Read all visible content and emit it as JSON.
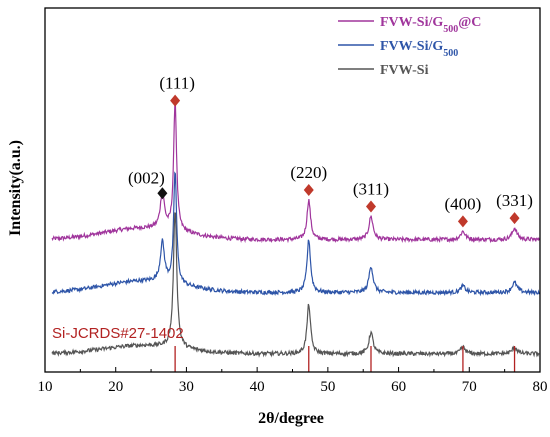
{
  "chart_data": {
    "type": "line",
    "xlabel": "2θ/degree",
    "ylabel": "Intensity(a.u.)",
    "xlim": [
      10,
      80
    ],
    "x_ticks": [
      10,
      20,
      30,
      40,
      50,
      60,
      70,
      80
    ],
    "y_ticks_shown": false,
    "legend_position": "top-right",
    "series": [
      {
        "name": "FVW-Si/G500@C",
        "color": "#a0359c",
        "baseline": 4.0,
        "peaks": [
          [
            26.6,
            1.1,
            0.35
          ],
          [
            28.4,
            3.9,
            0.25
          ],
          [
            47.3,
            1.2,
            0.3
          ],
          [
            56.1,
            0.7,
            0.35
          ],
          [
            69.1,
            0.25,
            0.4
          ],
          [
            76.4,
            0.35,
            0.4
          ]
        ]
      },
      {
        "name": "FVW-Si/G500",
        "color": "#2e55a8",
        "baseline": 2.4,
        "peaks": [
          [
            26.6,
            1.2,
            0.35
          ],
          [
            28.4,
            3.4,
            0.25
          ],
          [
            47.3,
            1.6,
            0.3
          ],
          [
            56.1,
            0.8,
            0.35
          ],
          [
            69.1,
            0.2,
            0.4
          ],
          [
            76.4,
            0.3,
            0.45
          ]
        ]
      },
      {
        "name": "FVW-Si",
        "color": "#555555",
        "baseline": 0.55,
        "peaks": [
          [
            28.4,
            4.2,
            0.28
          ],
          [
            47.3,
            1.5,
            0.3
          ],
          [
            56.1,
            0.65,
            0.35
          ],
          [
            69.1,
            0.2,
            0.4
          ],
          [
            76.4,
            0.2,
            0.4
          ]
        ]
      }
    ],
    "peak_labels": [
      {
        "text": "(002)",
        "x": 26.6,
        "marker": "black-diamond"
      },
      {
        "text": "(111)",
        "x": 28.4,
        "marker": "red-diamond"
      },
      {
        "text": "(220)",
        "x": 47.3,
        "marker": "red-diamond"
      },
      {
        "text": "(311)",
        "x": 56.1,
        "marker": "red-diamond"
      },
      {
        "text": "(400)",
        "x": 69.1,
        "marker": "red-diamond"
      },
      {
        "text": "(331)",
        "x": 76.4,
        "marker": "red-diamond"
      }
    ],
    "reference": {
      "label": "Si-JCRDS#27-1402",
      "lines": [
        28.4,
        47.3,
        56.1,
        69.1,
        76.4
      ],
      "color": "#b22222"
    }
  },
  "colors": {
    "marker_red": "#c0392b",
    "marker_black": "#111111"
  }
}
